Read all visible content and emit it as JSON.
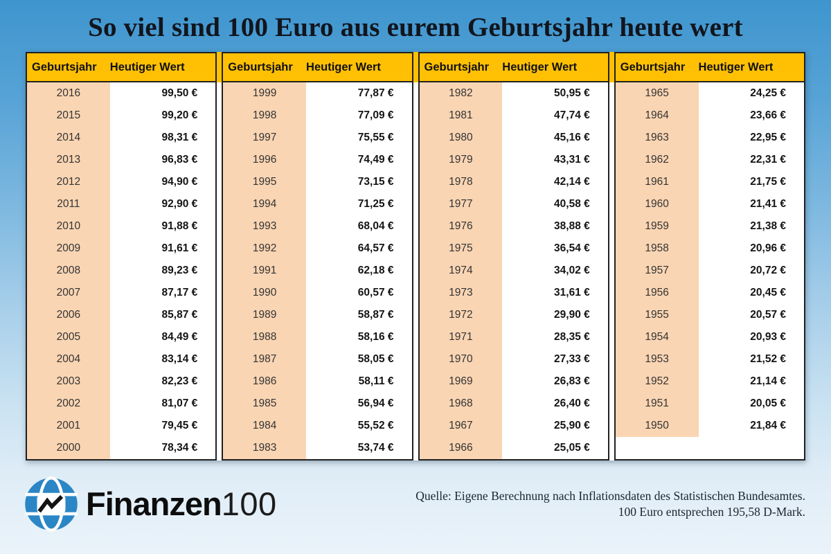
{
  "title": "So viel sind 100 Euro aus eurem Geburtsjahr heute wert",
  "table": {
    "year_header": "Geburtsjahr",
    "value_header": "Heutiger Wert"
  },
  "chart_data": {
    "type": "table",
    "title": "So viel sind 100 Euro aus eurem Geburtsjahr heute wert",
    "columns": [
      "Geburtsjahr",
      "Heutiger Wert"
    ],
    "unit": "EUR",
    "layout": "4 side-by-side column pairs, newest year at top-left",
    "rows": [
      [
        "2016",
        "99,50 €"
      ],
      [
        "2015",
        "99,20 €"
      ],
      [
        "2014",
        "98,31 €"
      ],
      [
        "2013",
        "96,83 €"
      ],
      [
        "2012",
        "94,90 €"
      ],
      [
        "2011",
        "92,90 €"
      ],
      [
        "2010",
        "91,88 €"
      ],
      [
        "2009",
        "91,61 €"
      ],
      [
        "2008",
        "89,23 €"
      ],
      [
        "2007",
        "87,17 €"
      ],
      [
        "2006",
        "85,87 €"
      ],
      [
        "2005",
        "84,49 €"
      ],
      [
        "2004",
        "83,14 €"
      ],
      [
        "2003",
        "82,23 €"
      ],
      [
        "2002",
        "81,07 €"
      ],
      [
        "2001",
        "79,45 €"
      ],
      [
        "2000",
        "78,34 €"
      ],
      [
        "1999",
        "77,87 €"
      ],
      [
        "1998",
        "77,09 €"
      ],
      [
        "1997",
        "75,55 €"
      ],
      [
        "1996",
        "74,49 €"
      ],
      [
        "1995",
        "73,15 €"
      ],
      [
        "1994",
        "71,25 €"
      ],
      [
        "1993",
        "68,04 €"
      ],
      [
        "1992",
        "64,57 €"
      ],
      [
        "1991",
        "62,18 €"
      ],
      [
        "1990",
        "60,57 €"
      ],
      [
        "1989",
        "58,87 €"
      ],
      [
        "1988",
        "58,16 €"
      ],
      [
        "1987",
        "58,05 €"
      ],
      [
        "1986",
        "58,11 €"
      ],
      [
        "1985",
        "56,94 €"
      ],
      [
        "1984",
        "55,52 €"
      ],
      [
        "1983",
        "53,74 €"
      ],
      [
        "1982",
        "50,95 €"
      ],
      [
        "1981",
        "47,74 €"
      ],
      [
        "1980",
        "45,16 €"
      ],
      [
        "1979",
        "43,31 €"
      ],
      [
        "1978",
        "42,14 €"
      ],
      [
        "1977",
        "40,58 €"
      ],
      [
        "1976",
        "38,88 €"
      ],
      [
        "1975",
        "36,54 €"
      ],
      [
        "1974",
        "34,02 €"
      ],
      [
        "1973",
        "31,61 €"
      ],
      [
        "1972",
        "29,90 €"
      ],
      [
        "1971",
        "28,35 €"
      ],
      [
        "1970",
        "27,33 €"
      ],
      [
        "1969",
        "26,83 €"
      ],
      [
        "1968",
        "26,40 €"
      ],
      [
        "1967",
        "25,90 €"
      ],
      [
        "1966",
        "25,05 €"
      ],
      [
        "1965",
        "24,25 €"
      ],
      [
        "1964",
        "23,66 €"
      ],
      [
        "1963",
        "22,95 €"
      ],
      [
        "1962",
        "22,31 €"
      ],
      [
        "1961",
        "21,75 €"
      ],
      [
        "1960",
        "21,41 €"
      ],
      [
        "1959",
        "21,38 €"
      ],
      [
        "1958",
        "20,96 €"
      ],
      [
        "1957",
        "20,72 €"
      ],
      [
        "1956",
        "20,45 €"
      ],
      [
        "1955",
        "20,57 €"
      ],
      [
        "1954",
        "20,93 €"
      ],
      [
        "1953",
        "21,52 €"
      ],
      [
        "1952",
        "21,14 €"
      ],
      [
        "1951",
        "20,05 €"
      ],
      [
        "1950",
        "21,84 €"
      ]
    ]
  },
  "footer": {
    "brand_bold": "Finanzen",
    "brand_light": "100",
    "source_line1": "Quelle: Eigene Berechnung nach Inflationsdaten des Statistischen Bundesamtes.",
    "source_line2": "100 Euro entsprechen 195,58 D-Mark."
  },
  "colors": {
    "header_yellow": "#FFC003",
    "year_peach": "#FAD5B3",
    "background_top": "#3E95CE",
    "background_bottom": "#EAF3FA",
    "logo_blue": "#2B86C5",
    "title_text": "#12151D"
  }
}
